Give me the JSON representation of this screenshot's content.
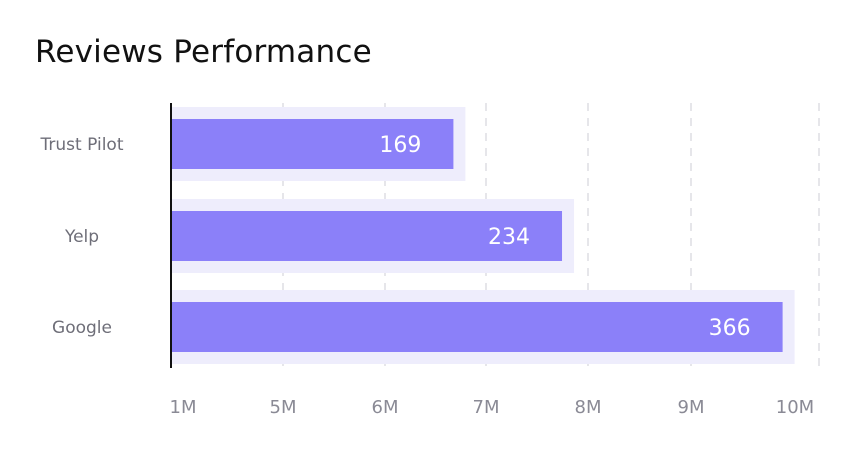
{
  "title": "Reviews Performance",
  "colors": {
    "bar": "#8b80f9",
    "bar_track": "#eeedfc",
    "grid": "#e6e6ea",
    "axis": "#111111",
    "value_text": "#ffffff",
    "category_text": "#6e6e78",
    "tick_text": "#8a8a95"
  },
  "chart_data": {
    "type": "bar",
    "orientation": "horizontal",
    "title": "Reviews Performance",
    "categories": [
      "Trust Pilot",
      "Yelp",
      "Google"
    ],
    "values": [
      169,
      234,
      366
    ],
    "x_ticks": [
      "1M",
      "5M",
      "6M",
      "7M",
      "8M",
      "9M",
      "10M"
    ],
    "value_scale_max": 380,
    "grid": true,
    "grid_style": "dashed vertical",
    "legend": "none"
  }
}
